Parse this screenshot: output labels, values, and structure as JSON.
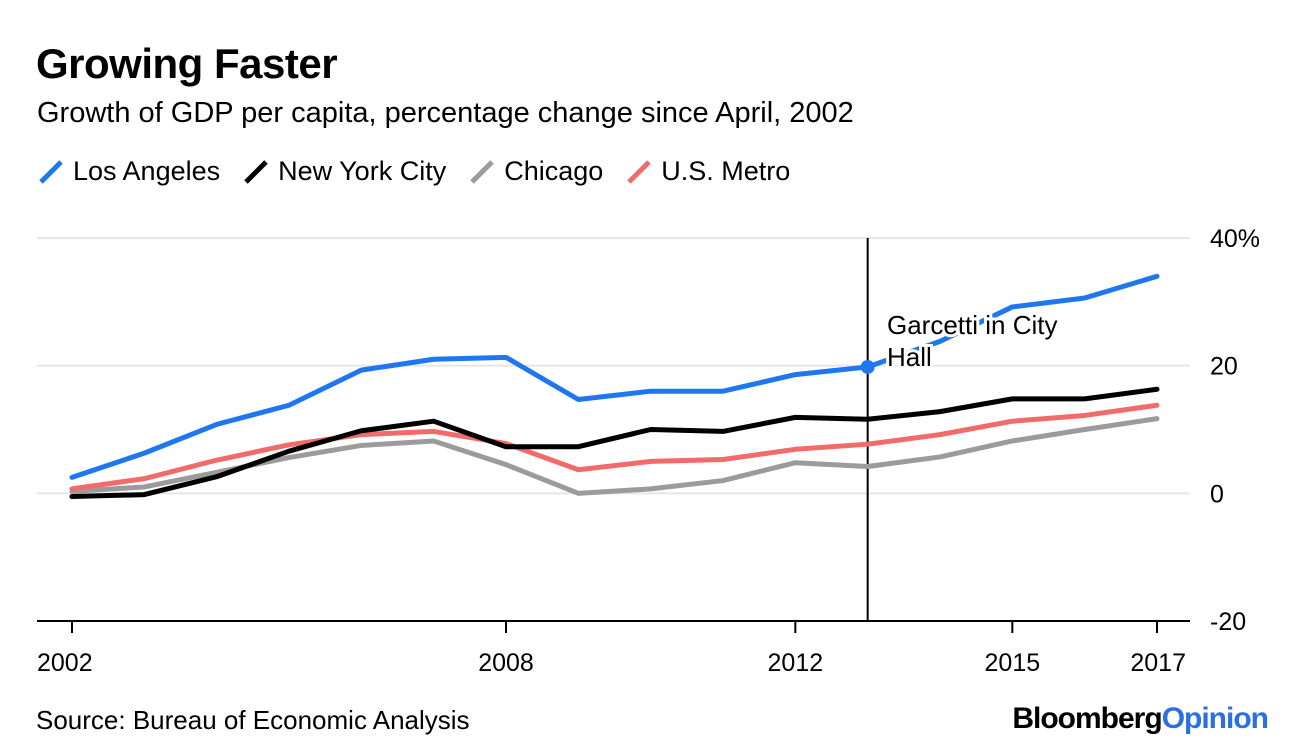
{
  "header": {
    "title": "Growing Faster",
    "subtitle": "Growth of GDP per capita, percentage change since April, 2002"
  },
  "legend": [
    {
      "label": "Los Angeles",
      "color": "#1f77f0"
    },
    {
      "label": "New York City",
      "color": "#000000"
    },
    {
      "label": "Chicago",
      "color": "#9b9b9b"
    },
    {
      "label": "U.S. Metro",
      "color": "#f26b6b"
    }
  ],
  "footer": {
    "source": "Source: Bureau of Economic Analysis",
    "brand_main": "Bloomberg",
    "brand_sub": "Opinion"
  },
  "chart_data": {
    "type": "line",
    "title": "Growing Faster",
    "subtitle": "Growth of GDP per capita, percentage change since April, 2002",
    "xlabel": "",
    "ylabel": "",
    "x": [
      2002,
      2003,
      2004,
      2005,
      2006,
      2007,
      2008,
      2009,
      2010,
      2011,
      2012,
      2013,
      2014,
      2015,
      2016,
      2017
    ],
    "xlim": [
      2002,
      2017
    ],
    "ylim": [
      -20,
      40
    ],
    "yticks": [
      -20,
      0,
      20,
      40
    ],
    "ytick_labels": [
      "-20",
      "0",
      "20",
      "40%"
    ],
    "xticks": [
      2002,
      2008,
      2012,
      2015,
      2017
    ],
    "xtick_labels": [
      "2002",
      "2008",
      "2012",
      "2015",
      "2017"
    ],
    "series": [
      {
        "name": "Los Angeles",
        "color": "#1f77f0",
        "values": [
          2.5,
          6.3,
          10.8,
          13.8,
          19.3,
          21.0,
          21.3,
          14.7,
          16.0,
          16.0,
          18.6,
          19.8,
          23.8,
          29.2,
          30.6,
          34.0
        ]
      },
      {
        "name": "New York City",
        "color": "#000000",
        "values": [
          -0.5,
          -0.2,
          2.6,
          6.6,
          9.8,
          11.3,
          7.3,
          7.3,
          10.0,
          9.7,
          11.9,
          11.6,
          12.8,
          14.8,
          14.8,
          16.3
        ]
      },
      {
        "name": "Chicago",
        "color": "#9b9b9b",
        "values": [
          0.3,
          1.0,
          3.3,
          5.6,
          7.5,
          8.2,
          4.5,
          0.0,
          0.7,
          2.0,
          4.8,
          4.2,
          5.7,
          8.2,
          10.0,
          11.7
        ]
      },
      {
        "name": "U.S. Metro",
        "color": "#f26b6b",
        "values": [
          0.7,
          2.3,
          5.2,
          7.6,
          9.2,
          9.7,
          7.8,
          3.7,
          5.0,
          5.3,
          6.9,
          7.7,
          9.2,
          11.3,
          12.2,
          13.8
        ]
      }
    ],
    "annotation": {
      "x": 2013,
      "y": 19.8,
      "text_line1": "Garcetti in City",
      "text_line2": "Hall"
    }
  }
}
